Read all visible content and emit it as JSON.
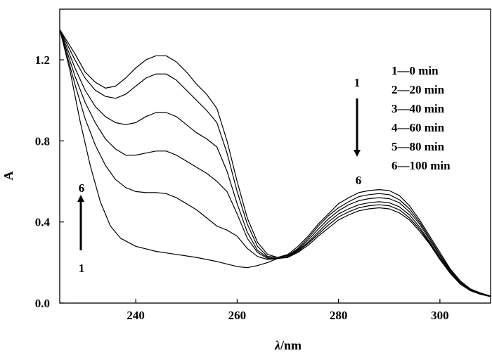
{
  "chart_data": {
    "type": "line",
    "xlabel_var": "λ",
    "xlabel_unit": "/nm",
    "ylabel": "A",
    "xlim": [
      225,
      310
    ],
    "ylim": [
      0,
      1.45
    ],
    "xticks": [
      {
        "value": 240,
        "label": "240"
      },
      {
        "value": 260,
        "label": "260"
      },
      {
        "value": 280,
        "label": "280"
      },
      {
        "value": 300,
        "label": "300"
      }
    ],
    "yticks": [
      {
        "value": 0.0,
        "label": "0.0"
      },
      {
        "value": 0.4,
        "label": "0.4"
      },
      {
        "value": 0.8,
        "label": "0.8"
      },
      {
        "value": 1.2,
        "label": "1.2"
      }
    ],
    "legend": [
      {
        "num": "1",
        "sep": "—",
        "time": "0 min"
      },
      {
        "num": "2",
        "sep": "—",
        "time": "20 min"
      },
      {
        "num": "3",
        "sep": "—",
        "time": "40 min"
      },
      {
        "num": "4",
        "sep": "—",
        "time": "60 min"
      },
      {
        "num": "5",
        "sep": "—",
        "time": "80 min"
      },
      {
        "num": "6",
        "sep": "—",
        "time": "100 min"
      }
    ],
    "annotations": {
      "right_top": "1",
      "right_bottom": "6",
      "left_top": "6",
      "left_bottom": "1"
    },
    "series": [
      {
        "name": "1",
        "points": [
          [
            225,
            1.35
          ],
          [
            228,
            1.23
          ],
          [
            230,
            1.14
          ],
          [
            232,
            1.09
          ],
          [
            234,
            1.06
          ],
          [
            236,
            1.07
          ],
          [
            238,
            1.11
          ],
          [
            240,
            1.16
          ],
          [
            242,
            1.2
          ],
          [
            244,
            1.22
          ],
          [
            246,
            1.22
          ],
          [
            248,
            1.19
          ],
          [
            250,
            1.14
          ],
          [
            252,
            1.08
          ],
          [
            254,
            1.03
          ],
          [
            256,
            0.96
          ],
          [
            258,
            0.8
          ],
          [
            260,
            0.6
          ],
          [
            262,
            0.42
          ],
          [
            264,
            0.3
          ],
          [
            266,
            0.24
          ],
          [
            268,
            0.225
          ],
          [
            270,
            0.24
          ],
          [
            272,
            0.28
          ],
          [
            274,
            0.33
          ],
          [
            276,
            0.39
          ],
          [
            278,
            0.44
          ],
          [
            280,
            0.49
          ],
          [
            282,
            0.52
          ],
          [
            284,
            0.545
          ],
          [
            286,
            0.555
          ],
          [
            288,
            0.56
          ],
          [
            290,
            0.555
          ],
          [
            292,
            0.53
          ],
          [
            294,
            0.48
          ],
          [
            296,
            0.41
          ],
          [
            298,
            0.33
          ],
          [
            300,
            0.25
          ],
          [
            302,
            0.17
          ],
          [
            304,
            0.11
          ],
          [
            306,
            0.07
          ],
          [
            308,
            0.05
          ],
          [
            310,
            0.035
          ]
        ]
      },
      {
        "name": "2",
        "points": [
          [
            225,
            1.35
          ],
          [
            228,
            1.2
          ],
          [
            230,
            1.11
          ],
          [
            232,
            1.05
          ],
          [
            234,
            1.02
          ],
          [
            236,
            1.01
          ],
          [
            238,
            1.03
          ],
          [
            240,
            1.07
          ],
          [
            242,
            1.11
          ],
          [
            244,
            1.13
          ],
          [
            246,
            1.13
          ],
          [
            248,
            1.1
          ],
          [
            250,
            1.05
          ],
          [
            252,
            1.0
          ],
          [
            254,
            0.95
          ],
          [
            256,
            0.89
          ],
          [
            258,
            0.74
          ],
          [
            260,
            0.55
          ],
          [
            262,
            0.39
          ],
          [
            264,
            0.28
          ],
          [
            266,
            0.23
          ],
          [
            268,
            0.225
          ],
          [
            270,
            0.235
          ],
          [
            272,
            0.27
          ],
          [
            274,
            0.32
          ],
          [
            276,
            0.38
          ],
          [
            278,
            0.43
          ],
          [
            280,
            0.47
          ],
          [
            282,
            0.5
          ],
          [
            284,
            0.525
          ],
          [
            286,
            0.535
          ],
          [
            288,
            0.54
          ],
          [
            290,
            0.535
          ],
          [
            292,
            0.51
          ],
          [
            294,
            0.465
          ],
          [
            296,
            0.4
          ],
          [
            298,
            0.32
          ],
          [
            300,
            0.24
          ],
          [
            302,
            0.165
          ],
          [
            304,
            0.105
          ],
          [
            306,
            0.068
          ],
          [
            308,
            0.048
          ],
          [
            310,
            0.034
          ]
        ]
      },
      {
        "name": "3",
        "points": [
          [
            225,
            1.35
          ],
          [
            228,
            1.16
          ],
          [
            230,
            1.05
          ],
          [
            232,
            0.97
          ],
          [
            234,
            0.92
          ],
          [
            236,
            0.89
          ],
          [
            238,
            0.88
          ],
          [
            240,
            0.89
          ],
          [
            242,
            0.92
          ],
          [
            244,
            0.94
          ],
          [
            246,
            0.94
          ],
          [
            248,
            0.92
          ],
          [
            250,
            0.88
          ],
          [
            252,
            0.84
          ],
          [
            254,
            0.81
          ],
          [
            256,
            0.77
          ],
          [
            258,
            0.65
          ],
          [
            260,
            0.49
          ],
          [
            262,
            0.35
          ],
          [
            264,
            0.26
          ],
          [
            266,
            0.225
          ],
          [
            268,
            0.225
          ],
          [
            270,
            0.235
          ],
          [
            272,
            0.265
          ],
          [
            274,
            0.31
          ],
          [
            276,
            0.365
          ],
          [
            278,
            0.415
          ],
          [
            280,
            0.455
          ],
          [
            282,
            0.485
          ],
          [
            284,
            0.505
          ],
          [
            286,
            0.515
          ],
          [
            288,
            0.52
          ],
          [
            290,
            0.515
          ],
          [
            292,
            0.495
          ],
          [
            294,
            0.45
          ],
          [
            296,
            0.39
          ],
          [
            298,
            0.31
          ],
          [
            300,
            0.235
          ],
          [
            302,
            0.16
          ],
          [
            304,
            0.1
          ],
          [
            306,
            0.066
          ],
          [
            308,
            0.046
          ],
          [
            310,
            0.033
          ]
        ]
      },
      {
        "name": "4",
        "points": [
          [
            225,
            1.35
          ],
          [
            228,
            1.12
          ],
          [
            230,
            0.99
          ],
          [
            232,
            0.89
          ],
          [
            234,
            0.81
          ],
          [
            236,
            0.76
          ],
          [
            238,
            0.73
          ],
          [
            240,
            0.73
          ],
          [
            242,
            0.74
          ],
          [
            244,
            0.75
          ],
          [
            246,
            0.75
          ],
          [
            248,
            0.73
          ],
          [
            250,
            0.7
          ],
          [
            252,
            0.67
          ],
          [
            254,
            0.64
          ],
          [
            256,
            0.6
          ],
          [
            258,
            0.55
          ],
          [
            260,
            0.44
          ],
          [
            262,
            0.32
          ],
          [
            264,
            0.25
          ],
          [
            266,
            0.22
          ],
          [
            268,
            0.22
          ],
          [
            270,
            0.23
          ],
          [
            272,
            0.26
          ],
          [
            274,
            0.3
          ],
          [
            276,
            0.35
          ],
          [
            278,
            0.4
          ],
          [
            280,
            0.44
          ],
          [
            282,
            0.465
          ],
          [
            284,
            0.485
          ],
          [
            286,
            0.495
          ],
          [
            288,
            0.5
          ],
          [
            290,
            0.495
          ],
          [
            292,
            0.475
          ],
          [
            294,
            0.435
          ],
          [
            296,
            0.375
          ],
          [
            298,
            0.3
          ],
          [
            300,
            0.225
          ],
          [
            302,
            0.155
          ],
          [
            304,
            0.098
          ],
          [
            306,
            0.064
          ],
          [
            308,
            0.045
          ],
          [
            310,
            0.033
          ]
        ]
      },
      {
        "name": "5",
        "points": [
          [
            225,
            1.35
          ],
          [
            228,
            1.08
          ],
          [
            230,
            0.91
          ],
          [
            232,
            0.78
          ],
          [
            234,
            0.68
          ],
          [
            236,
            0.61
          ],
          [
            238,
            0.57
          ],
          [
            240,
            0.55
          ],
          [
            242,
            0.545
          ],
          [
            244,
            0.545
          ],
          [
            246,
            0.54
          ],
          [
            248,
            0.52
          ],
          [
            250,
            0.49
          ],
          [
            252,
            0.46
          ],
          [
            254,
            0.42
          ],
          [
            256,
            0.38
          ],
          [
            258,
            0.36
          ],
          [
            260,
            0.33
          ],
          [
            262,
            0.27
          ],
          [
            264,
            0.23
          ],
          [
            266,
            0.215
          ],
          [
            268,
            0.22
          ],
          [
            270,
            0.228
          ],
          [
            272,
            0.255
          ],
          [
            274,
            0.295
          ],
          [
            276,
            0.34
          ],
          [
            278,
            0.385
          ],
          [
            280,
            0.425
          ],
          [
            282,
            0.45
          ],
          [
            284,
            0.47
          ],
          [
            286,
            0.48
          ],
          [
            288,
            0.485
          ],
          [
            290,
            0.48
          ],
          [
            292,
            0.46
          ],
          [
            294,
            0.42
          ],
          [
            296,
            0.365
          ],
          [
            298,
            0.295
          ],
          [
            300,
            0.22
          ],
          [
            302,
            0.15
          ],
          [
            304,
            0.095
          ],
          [
            306,
            0.062
          ],
          [
            308,
            0.044
          ],
          [
            310,
            0.032
          ]
        ]
      },
      {
        "name": "6",
        "points": [
          [
            225,
            1.35
          ],
          [
            227,
            1.15
          ],
          [
            229,
            0.9
          ],
          [
            231,
            0.68
          ],
          [
            233,
            0.5
          ],
          [
            235,
            0.38
          ],
          [
            237,
            0.32
          ],
          [
            240,
            0.28
          ],
          [
            244,
            0.255
          ],
          [
            248,
            0.24
          ],
          [
            252,
            0.225
          ],
          [
            256,
            0.205
          ],
          [
            260,
            0.18
          ],
          [
            262,
            0.175
          ],
          [
            264,
            0.185
          ],
          [
            266,
            0.2
          ],
          [
            268,
            0.22
          ],
          [
            270,
            0.225
          ],
          [
            272,
            0.25
          ],
          [
            274,
            0.285
          ],
          [
            276,
            0.33
          ],
          [
            278,
            0.37
          ],
          [
            280,
            0.41
          ],
          [
            282,
            0.435
          ],
          [
            284,
            0.455
          ],
          [
            286,
            0.465
          ],
          [
            288,
            0.47
          ],
          [
            290,
            0.465
          ],
          [
            292,
            0.445
          ],
          [
            294,
            0.41
          ],
          [
            296,
            0.355
          ],
          [
            298,
            0.29
          ],
          [
            300,
            0.215
          ],
          [
            302,
            0.148
          ],
          [
            304,
            0.094
          ],
          [
            306,
            0.061
          ],
          [
            308,
            0.043
          ],
          [
            310,
            0.032
          ]
        ]
      }
    ]
  }
}
